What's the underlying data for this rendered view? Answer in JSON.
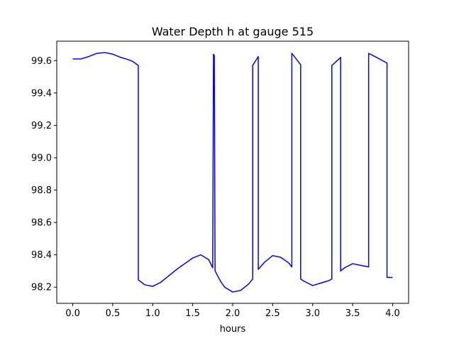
{
  "chart_data": {
    "type": "line",
    "title": "Water Depth h at gauge 515",
    "xlabel": "hours",
    "ylabel": "",
    "xlim": [
      -0.2,
      4.2
    ],
    "ylim": [
      98.1,
      99.72
    ],
    "x_ticks": [
      0.0,
      0.5,
      1.0,
      1.5,
      2.0,
      2.5,
      3.0,
      3.5,
      4.0
    ],
    "x_tick_labels": [
      "0.0",
      "0.5",
      "1.0",
      "1.5",
      "2.0",
      "2.5",
      "3.0",
      "3.5",
      "4.0"
    ],
    "y_ticks": [
      98.2,
      98.4,
      98.6,
      98.8,
      99.0,
      99.2,
      99.4,
      99.6
    ],
    "y_tick_labels": [
      "98.2",
      "98.4",
      "98.6",
      "98.8",
      "99.0",
      "99.2",
      "99.4",
      "99.6"
    ],
    "grid": false,
    "legend": "none",
    "series": [
      {
        "color": "#0000ff",
        "x": [
          0.0,
          0.1,
          0.2,
          0.3,
          0.4,
          0.5,
          0.6,
          0.7,
          0.75,
          0.82,
          0.82,
          0.9,
          1.0,
          1.1,
          1.2,
          1.3,
          1.4,
          1.5,
          1.6,
          1.7,
          1.75,
          1.76,
          1.77,
          1.78,
          1.78,
          1.85,
          1.9,
          2.0,
          2.1,
          2.2,
          2.25,
          2.25,
          2.32,
          2.32,
          2.4,
          2.5,
          2.6,
          2.7,
          2.74,
          2.74,
          2.85,
          2.85,
          2.9,
          3.0,
          3.1,
          3.2,
          3.24,
          3.24,
          3.35,
          3.35,
          3.4,
          3.5,
          3.6,
          3.7,
          3.7,
          3.8,
          3.93,
          3.93,
          4.0
        ],
        "y": [
          99.61,
          99.61,
          99.625,
          99.645,
          99.65,
          99.64,
          99.62,
          99.605,
          99.595,
          99.57,
          98.245,
          98.215,
          98.205,
          98.23,
          98.27,
          98.31,
          98.345,
          98.38,
          98.4,
          98.37,
          98.32,
          99.64,
          99.63,
          98.3,
          98.3,
          98.235,
          98.2,
          98.17,
          98.18,
          98.22,
          98.25,
          99.57,
          99.625,
          98.31,
          98.355,
          98.395,
          98.385,
          98.35,
          98.325,
          99.645,
          99.575,
          98.25,
          98.235,
          98.21,
          98.225,
          98.24,
          98.25,
          99.57,
          99.62,
          98.3,
          98.32,
          98.345,
          98.335,
          98.325,
          99.645,
          99.62,
          99.585,
          98.26,
          98.26
        ]
      }
    ]
  }
}
